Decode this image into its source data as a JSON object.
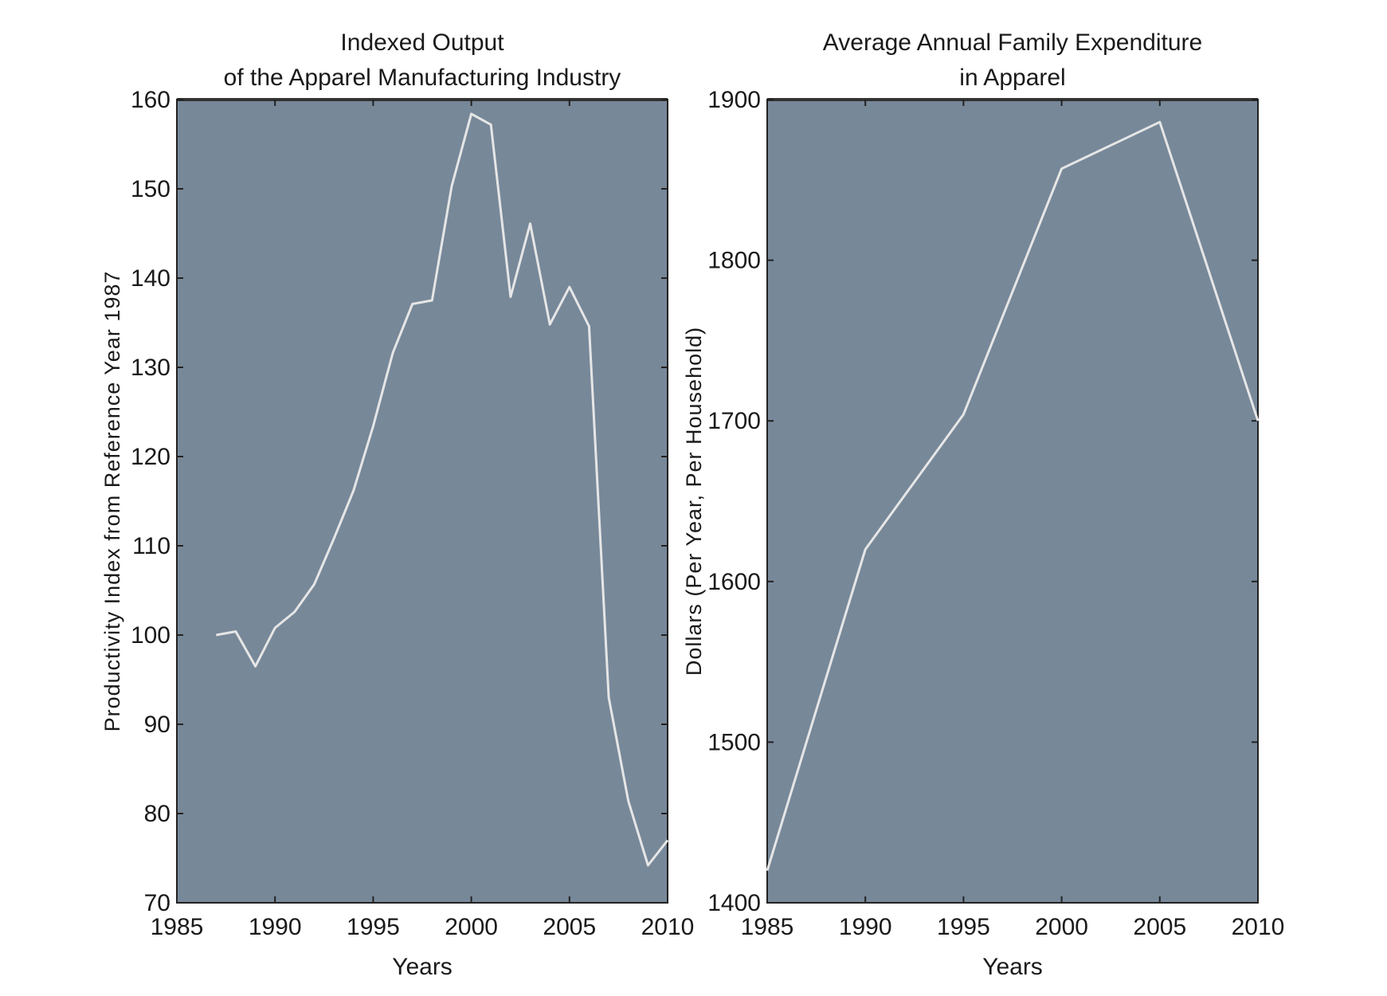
{
  "chart_data": [
    {
      "type": "line",
      "title": "Indexed Output\nof the Apparel Manufacturing Industry",
      "xlabel": "Years",
      "ylabel": "Productivity Index from Reference Year 1987",
      "xlim": [
        1985,
        2010
      ],
      "ylim": [
        70,
        160
      ],
      "xticks": [
        1985,
        1990,
        1995,
        2000,
        2005,
        2010
      ],
      "yticks": [
        70,
        80,
        90,
        100,
        110,
        120,
        130,
        140,
        150,
        160
      ],
      "grid": false,
      "background": "#778899",
      "line_color": "#e6e6e6",
      "x": [
        1987,
        1988,
        1989,
        1990,
        1991,
        1992,
        1993,
        1994,
        1995,
        1996,
        1997,
        1998,
        1999,
        2000,
        2001,
        2002,
        2003,
        2004,
        2005,
        2006,
        2007,
        2008,
        2009,
        2010
      ],
      "y": [
        100.0,
        100.4,
        96.5,
        100.8,
        102.6,
        105.7,
        110.8,
        116.2,
        123.4,
        131.6,
        137.1,
        137.5,
        150.3,
        158.4,
        157.2,
        137.9,
        146.1,
        134.8,
        139.0,
        134.6,
        93.0,
        81.4,
        74.2,
        77.0
      ]
    },
    {
      "type": "line",
      "title": "Average Annual Family Expenditure\nin Apparel",
      "xlabel": "Years",
      "ylabel": "Dollars (Per Year, Per Household)",
      "xlim": [
        1985,
        2010
      ],
      "ylim": [
        1400,
        1900
      ],
      "xticks": [
        1985,
        1990,
        1995,
        2000,
        2005,
        2010
      ],
      "yticks": [
        1400,
        1500,
        1600,
        1700,
        1800,
        1900
      ],
      "grid": false,
      "background": "#778899",
      "line_color": "#e6e6e6",
      "x": [
        1985,
        1990,
        1995,
        2000,
        2005,
        2010
      ],
      "y": [
        1420,
        1620,
        1704,
        1857,
        1886,
        1700
      ]
    }
  ]
}
